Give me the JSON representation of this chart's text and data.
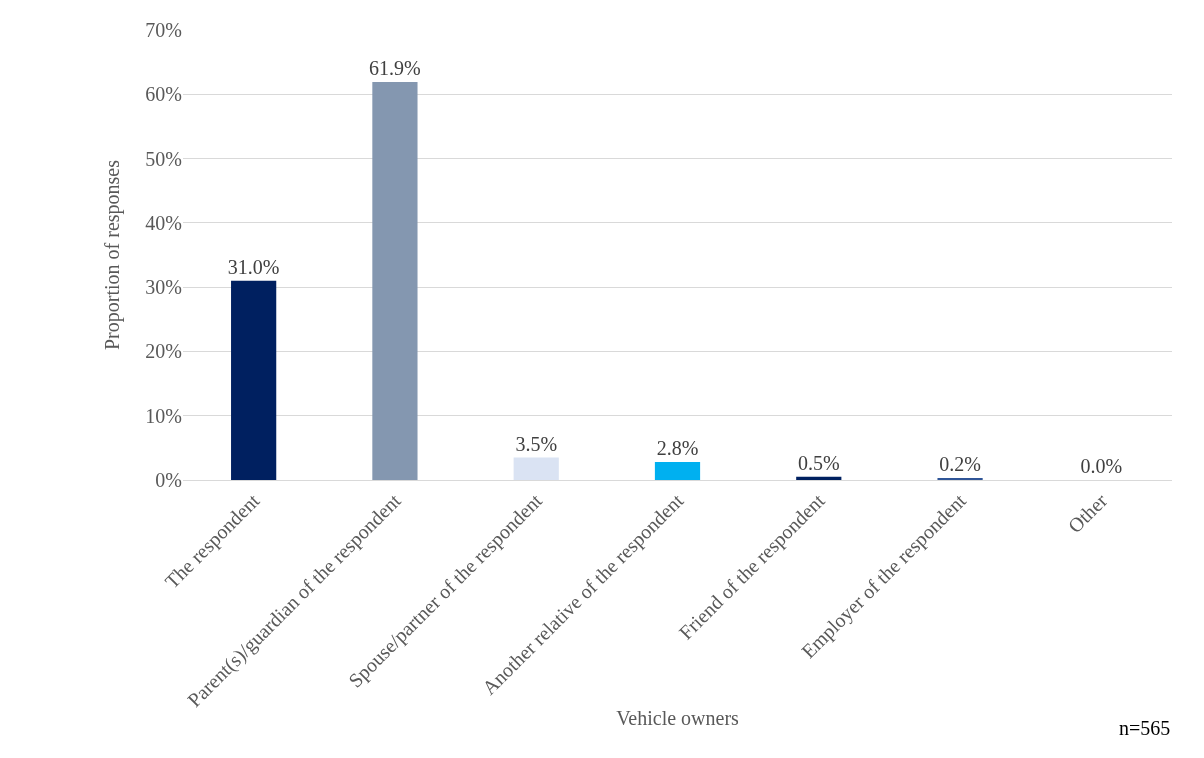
{
  "chart_data": {
    "type": "bar",
    "xlabel": "Vehicle owners",
    "ylabel": "Proportion of responses",
    "categories": [
      "The respondent",
      "Parent(s)/guardian of the respondent",
      "Spouse/partner of the respondent",
      "Another relative of the respondent",
      "Friend of the respondent",
      "Employer of the respondent",
      "Other"
    ],
    "values": [
      31.0,
      61.9,
      3.5,
      2.8,
      0.5,
      0.2,
      0.0
    ],
    "colors": [
      "#002060",
      "#8497b0",
      "#dae3f3",
      "#00b0f0",
      "#002060",
      "#2f5597",
      "#ffffff"
    ],
    "value_labels": [
      "31.0%",
      "61.9%",
      "3.5%",
      "2.8%",
      "0.5%",
      "0.2%",
      "0.0%"
    ],
    "ylim": [
      0,
      70
    ],
    "yticks": [
      {
        "value": 0,
        "label": "0%"
      },
      {
        "value": 10,
        "label": "10%"
      },
      {
        "value": 20,
        "label": "20%"
      },
      {
        "value": 30,
        "label": "30%"
      },
      {
        "value": 40,
        "label": "40%"
      },
      {
        "value": 50,
        "label": "50%"
      },
      {
        "value": 60,
        "label": "60%"
      },
      {
        "value": 70,
        "label": "70%"
      }
    ],
    "grid": "y",
    "annotations": [
      "n=565"
    ]
  }
}
